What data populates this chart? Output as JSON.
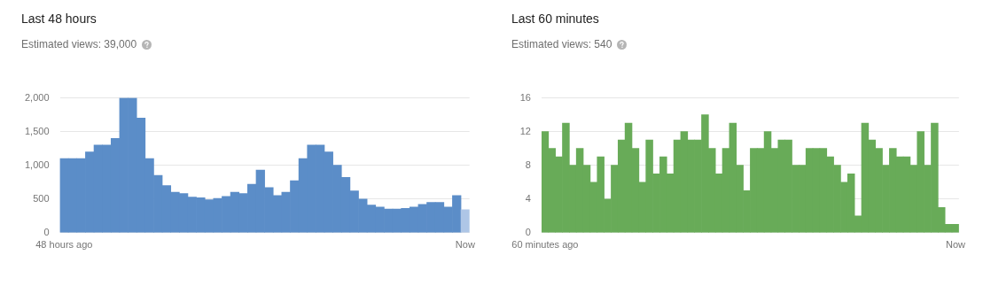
{
  "chart_data": [
    {
      "type": "bar",
      "title": "Last 48 hours",
      "subtitle": "Estimated views: 39,000",
      "categories": [
        "48 hours ago",
        null,
        null,
        null,
        null,
        null,
        null,
        null,
        null,
        null,
        null,
        null,
        null,
        null,
        null,
        null,
        null,
        null,
        null,
        null,
        null,
        null,
        null,
        null,
        null,
        null,
        null,
        null,
        null,
        null,
        null,
        null,
        null,
        null,
        null,
        null,
        null,
        null,
        null,
        null,
        null,
        null,
        null,
        null,
        null,
        null,
        null,
        "Now"
      ],
      "values": [
        1100,
        1100,
        1100,
        1200,
        1300,
        1300,
        1400,
        2000,
        2000,
        1700,
        1100,
        850,
        700,
        600,
        580,
        530,
        520,
        490,
        510,
        540,
        600,
        580,
        720,
        930,
        670,
        550,
        600,
        770,
        1100,
        1300,
        1300,
        1200,
        1000,
        820,
        620,
        500,
        410,
        380,
        350,
        350,
        360,
        380,
        420,
        450,
        450,
        380,
        550,
        340
      ],
      "colors": [
        "#5b8dc8",
        "#5b8dc8",
        "#5b8dc8",
        "#5b8dc8",
        "#5b8dc8",
        "#5b8dc8",
        "#5b8dc8",
        "#5b8dc8",
        "#5b8dc8",
        "#5b8dc8",
        "#5b8dc8",
        "#5b8dc8",
        "#5b8dc8",
        "#5b8dc8",
        "#5b8dc8",
        "#5b8dc8",
        "#5b8dc8",
        "#5b8dc8",
        "#5b8dc8",
        "#5b8dc8",
        "#5b8dc8",
        "#5b8dc8",
        "#5b8dc8",
        "#5b8dc8",
        "#5b8dc8",
        "#5b8dc8",
        "#5b8dc8",
        "#5b8dc8",
        "#5b8dc8",
        "#5b8dc8",
        "#5b8dc8",
        "#5b8dc8",
        "#5b8dc8",
        "#5b8dc8",
        "#5b8dc8",
        "#5b8dc8",
        "#5b8dc8",
        "#5b8dc8",
        "#5b8dc8",
        "#5b8dc8",
        "#5b8dc8",
        "#5b8dc8",
        "#5b8dc8",
        "#5b8dc8",
        "#5b8dc8",
        "#5b8dc8",
        "#5b8dc8",
        "#aec6e6"
      ],
      "ylim": [
        0,
        2000
      ],
      "yticks": [
        0,
        500,
        {
          "value": 1000,
          "label": "1,000"
        },
        {
          "value": 1500,
          "label": "1,500"
        },
        {
          "value": 2000,
          "label": "2,000"
        }
      ],
      "grid": "y",
      "legend": false
    },
    {
      "type": "bar",
      "title": "Last 60 minutes",
      "subtitle": "Estimated views: 540",
      "categories": [
        "60 minutes ago",
        null,
        null,
        null,
        null,
        null,
        null,
        null,
        null,
        null,
        null,
        null,
        null,
        null,
        null,
        null,
        null,
        null,
        null,
        null,
        null,
        null,
        null,
        null,
        null,
        null,
        null,
        null,
        null,
        null,
        null,
        null,
        null,
        null,
        null,
        null,
        null,
        null,
        null,
        null,
        null,
        null,
        null,
        null,
        null,
        null,
        null,
        null,
        null,
        null,
        null,
        null,
        null,
        null,
        null,
        null,
        null,
        null,
        null,
        "Now"
      ],
      "values": [
        12,
        10,
        9,
        13,
        8,
        10,
        8,
        6,
        9,
        4,
        8,
        11,
        13,
        10,
        6,
        11,
        7,
        9,
        7,
        11,
        12,
        11,
        11,
        14,
        10,
        7,
        10,
        13,
        8,
        5,
        10,
        10,
        12,
        10,
        11,
        11,
        8,
        8,
        10,
        10,
        10,
        9,
        8,
        6,
        7,
        2,
        13,
        11,
        10,
        8,
        10,
        9,
        9,
        8,
        12,
        8,
        13,
        3,
        1,
        1
      ],
      "color": "#68ab58",
      "ylim": [
        0,
        16
      ],
      "yticks": [
        0,
        4,
        8,
        12,
        16
      ],
      "grid": "y",
      "legend": false
    }
  ]
}
